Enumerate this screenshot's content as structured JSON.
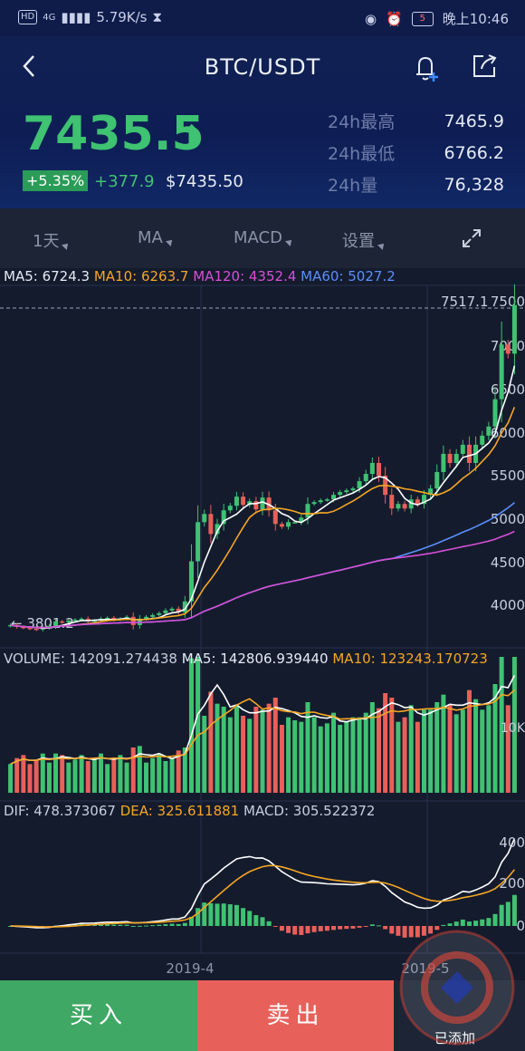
{
  "status_bar": {
    "hd": "HD",
    "network": "4G",
    "speed": "5.79K/s",
    "battery": "5",
    "time": "晚上10:46"
  },
  "header": {
    "title": "BTC/USDT",
    "price": "7435.5",
    "change_pct": "+5.35%",
    "change_abs": "+377.9",
    "usd_price": "$7435.50",
    "stats": [
      {
        "label": "24h最高",
        "value": "7465.9"
      },
      {
        "label": "24h最低",
        "value": "6766.2"
      },
      {
        "label": "24h量",
        "value": "76,328"
      }
    ]
  },
  "toolbar": {
    "interval": "1天",
    "ma": "MA",
    "macd": "MACD",
    "settings": "设置"
  },
  "indicators": {
    "ma5": "MA5: 6724.3",
    "ma10": "MA10: 6263.7",
    "ma120": "MA120: 4352.4",
    "ma60": "MA60: 5027.2",
    "volume": "VOLUME: 142091.274438",
    "vol_ma5": "MA5: 142806.939440",
    "vol_ma10": "MA10: 123243.170723",
    "dif": "DIF: 478.373067",
    "dea": "DEA: 325.611881",
    "macd": "MACD: 305.522372"
  },
  "chart_labels": {
    "max_label": "7517.1",
    "min_label": "← 3801.2",
    "price_ticks": [
      "7500",
      "7000",
      "6500",
      "6000",
      "5500",
      "5000",
      "4500",
      "4000"
    ],
    "volume_tick": "10K",
    "macd_ticks": [
      "400",
      "200",
      "0"
    ],
    "date_labels": [
      "2019-4",
      "2019-5"
    ]
  },
  "actions": {
    "buy": "买入",
    "sell": "卖出",
    "added": "已添加"
  },
  "colors": {
    "up": "#3fc272",
    "down": "#e8605a",
    "ma5": "#ffffff",
    "ma10": "#f5a623",
    "ma60": "#5b8ff9",
    "ma120": "#d64fd6",
    "background": "#141b2d"
  },
  "chart_data": {
    "type": "candlestick",
    "ylim": [
      3700,
      7600
    ],
    "closes": [
      3920,
      3900,
      3890,
      3880,
      3870,
      3890,
      3910,
      3960,
      3950,
      3970,
      3980,
      3990,
      3960,
      3970,
      3990,
      4000,
      3980,
      3990,
      4010,
      3920,
      3990,
      4010,
      4030,
      4050,
      4080,
      4100,
      4060,
      4180,
      4620,
      5050,
      5140,
      4920,
      5030,
      5180,
      5230,
      5330,
      5240,
      5280,
      5190,
      5320,
      5180,
      5030,
      5000,
      5050,
      5050,
      5100,
      5250,
      5270,
      5290,
      5300,
      5350,
      5380,
      5400,
      5420,
      5500,
      5580,
      5700,
      5560,
      5350,
      5200,
      5250,
      5200,
      5300,
      5250,
      5350,
      5420,
      5600,
      5800,
      5700,
      5800,
      5900,
      5700,
      5900,
      6000,
      6100,
      6400,
      7000,
      6900,
      7435
    ]
  }
}
